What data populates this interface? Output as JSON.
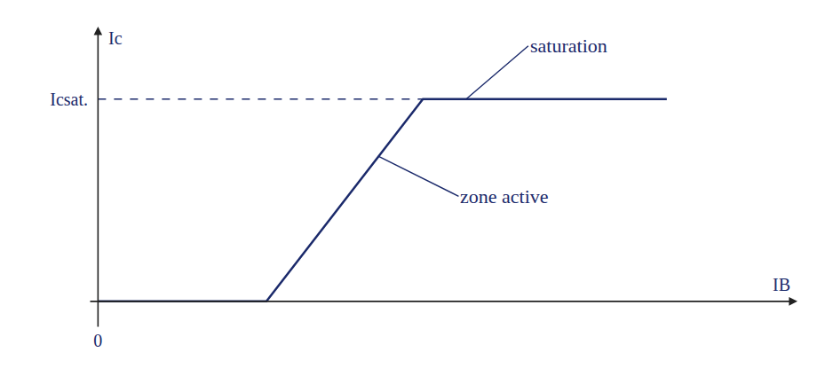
{
  "chart_data": {
    "type": "line",
    "x_label": "IB",
    "y_label": "Ic",
    "x": [
      0,
      1.83,
      3.53,
      6.18
    ],
    "values": [
      0,
      0,
      2.65,
      2.65
    ],
    "color": "#1b2a6b",
    "xlim": [
      -0.1,
      7.6
    ],
    "ylim": [
      -0.35,
      3.6
    ],
    "xticks": [
      0
    ],
    "yticks": [
      {
        "value": 2.65,
        "label": "Icsat."
      }
    ],
    "grid": false,
    "annotations": [
      {
        "text": "saturation",
        "x": 4.0,
        "y": 2.65
      },
      {
        "text": "zone active",
        "x": 3.05,
        "y": 1.9
      }
    ]
  }
}
